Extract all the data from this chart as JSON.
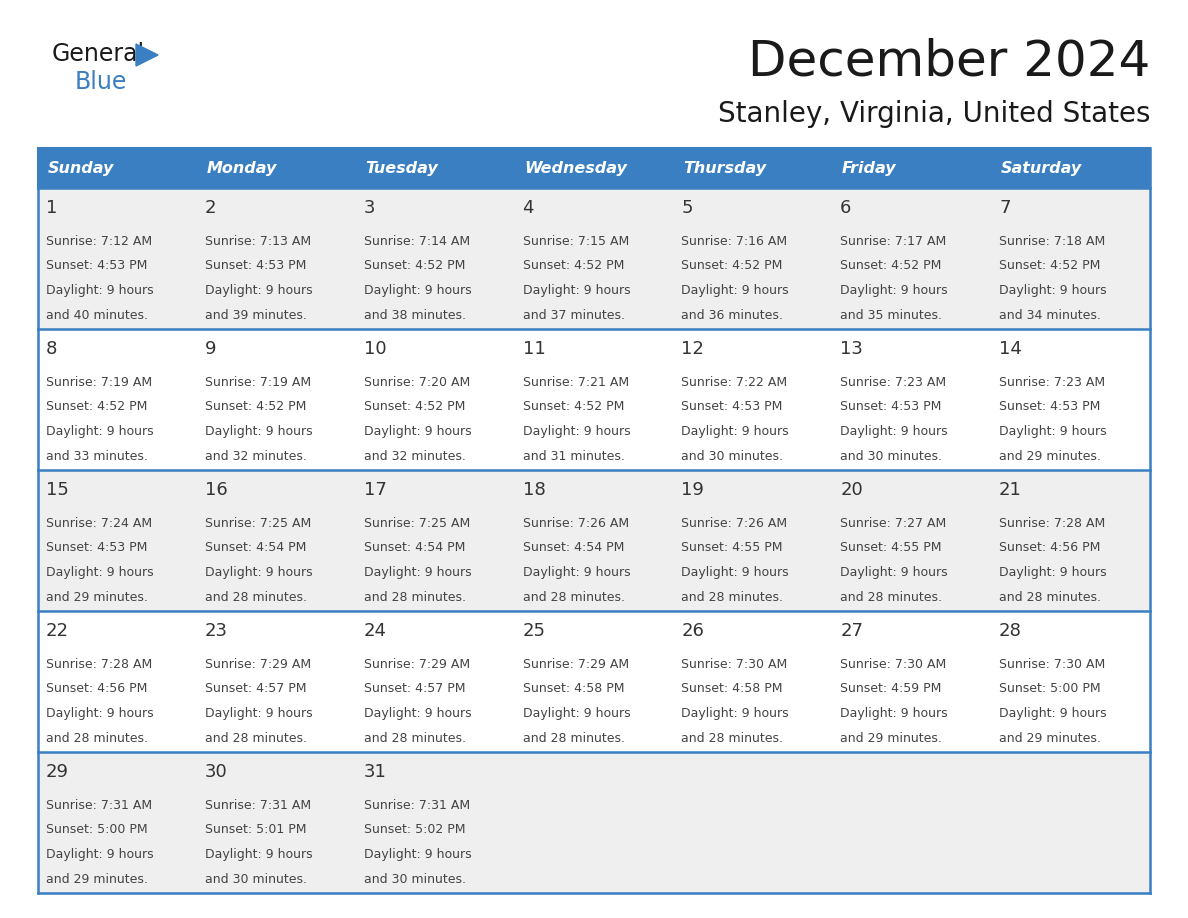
{
  "title": "December 2024",
  "subtitle": "Stanley, Virginia, United States",
  "header_color": "#3A7FC1",
  "header_text_color": "#FFFFFF",
  "cell_bg_color": "#FFFFFF",
  "cell_bg_alt_color": "#EFEFEF",
  "grid_line_color": "#3A7FC1",
  "day_text_color": "#333333",
  "detail_text_color": "#444444",
  "days_of_week": [
    "Sunday",
    "Monday",
    "Tuesday",
    "Wednesday",
    "Thursday",
    "Friday",
    "Saturday"
  ],
  "weeks": [
    [
      {
        "day": 1,
        "sunrise": "7:12 AM",
        "sunset": "4:53 PM",
        "daylight_h": "9 hours",
        "daylight_m": "40 minutes."
      },
      {
        "day": 2,
        "sunrise": "7:13 AM",
        "sunset": "4:53 PM",
        "daylight_h": "9 hours",
        "daylight_m": "39 minutes."
      },
      {
        "day": 3,
        "sunrise": "7:14 AM",
        "sunset": "4:52 PM",
        "daylight_h": "9 hours",
        "daylight_m": "38 minutes."
      },
      {
        "day": 4,
        "sunrise": "7:15 AM",
        "sunset": "4:52 PM",
        "daylight_h": "9 hours",
        "daylight_m": "37 minutes."
      },
      {
        "day": 5,
        "sunrise": "7:16 AM",
        "sunset": "4:52 PM",
        "daylight_h": "9 hours",
        "daylight_m": "36 minutes."
      },
      {
        "day": 6,
        "sunrise": "7:17 AM",
        "sunset": "4:52 PM",
        "daylight_h": "9 hours",
        "daylight_m": "35 minutes."
      },
      {
        "day": 7,
        "sunrise": "7:18 AM",
        "sunset": "4:52 PM",
        "daylight_h": "9 hours",
        "daylight_m": "34 minutes."
      }
    ],
    [
      {
        "day": 8,
        "sunrise": "7:19 AM",
        "sunset": "4:52 PM",
        "daylight_h": "9 hours",
        "daylight_m": "33 minutes."
      },
      {
        "day": 9,
        "sunrise": "7:19 AM",
        "sunset": "4:52 PM",
        "daylight_h": "9 hours",
        "daylight_m": "32 minutes."
      },
      {
        "day": 10,
        "sunrise": "7:20 AM",
        "sunset": "4:52 PM",
        "daylight_h": "9 hours",
        "daylight_m": "32 minutes."
      },
      {
        "day": 11,
        "sunrise": "7:21 AM",
        "sunset": "4:52 PM",
        "daylight_h": "9 hours",
        "daylight_m": "31 minutes."
      },
      {
        "day": 12,
        "sunrise": "7:22 AM",
        "sunset": "4:53 PM",
        "daylight_h": "9 hours",
        "daylight_m": "30 minutes."
      },
      {
        "day": 13,
        "sunrise": "7:23 AM",
        "sunset": "4:53 PM",
        "daylight_h": "9 hours",
        "daylight_m": "30 minutes."
      },
      {
        "day": 14,
        "sunrise": "7:23 AM",
        "sunset": "4:53 PM",
        "daylight_h": "9 hours",
        "daylight_m": "29 minutes."
      }
    ],
    [
      {
        "day": 15,
        "sunrise": "7:24 AM",
        "sunset": "4:53 PM",
        "daylight_h": "9 hours",
        "daylight_m": "29 minutes."
      },
      {
        "day": 16,
        "sunrise": "7:25 AM",
        "sunset": "4:54 PM",
        "daylight_h": "9 hours",
        "daylight_m": "28 minutes."
      },
      {
        "day": 17,
        "sunrise": "7:25 AM",
        "sunset": "4:54 PM",
        "daylight_h": "9 hours",
        "daylight_m": "28 minutes."
      },
      {
        "day": 18,
        "sunrise": "7:26 AM",
        "sunset": "4:54 PM",
        "daylight_h": "9 hours",
        "daylight_m": "28 minutes."
      },
      {
        "day": 19,
        "sunrise": "7:26 AM",
        "sunset": "4:55 PM",
        "daylight_h": "9 hours",
        "daylight_m": "28 minutes."
      },
      {
        "day": 20,
        "sunrise": "7:27 AM",
        "sunset": "4:55 PM",
        "daylight_h": "9 hours",
        "daylight_m": "28 minutes."
      },
      {
        "day": 21,
        "sunrise": "7:28 AM",
        "sunset": "4:56 PM",
        "daylight_h": "9 hours",
        "daylight_m": "28 minutes."
      }
    ],
    [
      {
        "day": 22,
        "sunrise": "7:28 AM",
        "sunset": "4:56 PM",
        "daylight_h": "9 hours",
        "daylight_m": "28 minutes."
      },
      {
        "day": 23,
        "sunrise": "7:29 AM",
        "sunset": "4:57 PM",
        "daylight_h": "9 hours",
        "daylight_m": "28 minutes."
      },
      {
        "day": 24,
        "sunrise": "7:29 AM",
        "sunset": "4:57 PM",
        "daylight_h": "9 hours",
        "daylight_m": "28 minutes."
      },
      {
        "day": 25,
        "sunrise": "7:29 AM",
        "sunset": "4:58 PM",
        "daylight_h": "9 hours",
        "daylight_m": "28 minutes."
      },
      {
        "day": 26,
        "sunrise": "7:30 AM",
        "sunset": "4:58 PM",
        "daylight_h": "9 hours",
        "daylight_m": "28 minutes."
      },
      {
        "day": 27,
        "sunrise": "7:30 AM",
        "sunset": "4:59 PM",
        "daylight_h": "9 hours",
        "daylight_m": "29 minutes."
      },
      {
        "day": 28,
        "sunrise": "7:30 AM",
        "sunset": "5:00 PM",
        "daylight_h": "9 hours",
        "daylight_m": "29 minutes."
      }
    ],
    [
      {
        "day": 29,
        "sunrise": "7:31 AM",
        "sunset": "5:00 PM",
        "daylight_h": "9 hours",
        "daylight_m": "29 minutes."
      },
      {
        "day": 30,
        "sunrise": "7:31 AM",
        "sunset": "5:01 PM",
        "daylight_h": "9 hours",
        "daylight_m": "30 minutes."
      },
      {
        "day": 31,
        "sunrise": "7:31 AM",
        "sunset": "5:02 PM",
        "daylight_h": "9 hours",
        "daylight_m": "30 minutes."
      },
      null,
      null,
      null,
      null
    ]
  ],
  "logo_text1": "General",
  "logo_text2": "Blue",
  "logo_color1": "#1a1a1a",
  "logo_color2": "#3a7fc1",
  "logo_triangle_color": "#3a7fc1"
}
